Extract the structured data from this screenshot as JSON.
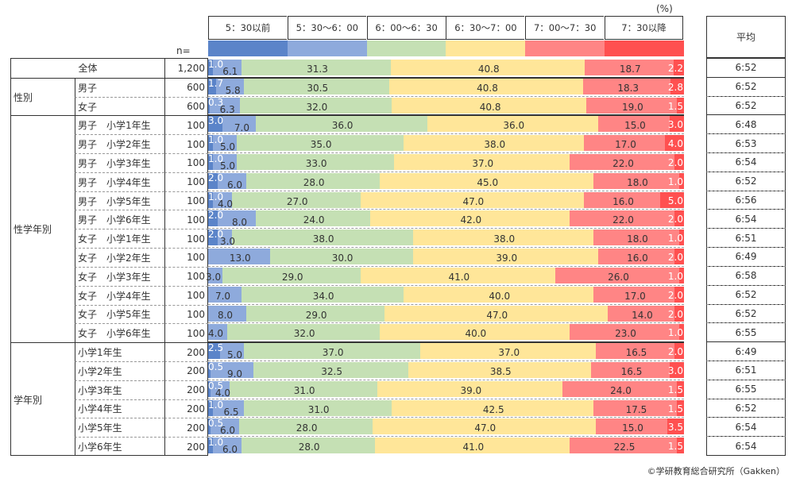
{
  "unit": "(%)",
  "n_label": "n=",
  "avg_header": "平均",
  "credit": "©学研教育総合研究所（Gakken）",
  "colors": [
    "#5b84c9",
    "#8eaadc",
    "#c5e0b4",
    "#ffe699",
    "#ff8585",
    "#ff5050"
  ],
  "chart_data": {
    "type": "bar",
    "stacked": true,
    "orientation": "horizontal",
    "xlim": [
      0,
      100
    ],
    "series_names": [
      "5：30以前",
      "5：30〜6：00",
      "6：00〜6：30",
      "6：30〜7：00",
      "7：00〜7：30",
      "7：30以降"
    ],
    "groups": [
      {
        "label": "",
        "rows": [
          {
            "label": "全体",
            "n": "1,200",
            "values": [
              1.0,
              6.1,
              31.3,
              40.8,
              18.7,
              2.2
            ],
            "avg": "6:52"
          }
        ]
      },
      {
        "label": "性別",
        "rows": [
          {
            "label": "男子",
            "n": "600",
            "values": [
              1.7,
              5.8,
              30.5,
              40.8,
              18.3,
              2.8
            ],
            "avg": "6:52"
          },
          {
            "label": "女子",
            "n": "600",
            "values": [
              0.3,
              6.3,
              32.0,
              40.8,
              19.0,
              1.5
            ],
            "avg": "6:52"
          }
        ]
      },
      {
        "label": "性学年別",
        "rows": [
          {
            "label": "男子　小学1年生",
            "n": "100",
            "values": [
              3.0,
              7.0,
              36.0,
              36.0,
              15.0,
              3.0
            ],
            "avg": "6:48"
          },
          {
            "label": "男子　小学2年生",
            "n": "100",
            "values": [
              1.0,
              5.0,
              35.0,
              38.0,
              17.0,
              4.0
            ],
            "avg": "6:53"
          },
          {
            "label": "男子　小学3年生",
            "n": "100",
            "values": [
              1.0,
              5.0,
              33.0,
              37.0,
              22.0,
              2.0
            ],
            "avg": "6:54"
          },
          {
            "label": "男子　小学4年生",
            "n": "100",
            "values": [
              2.0,
              6.0,
              28.0,
              45.0,
              18.0,
              1.0
            ],
            "avg": "6:52"
          },
          {
            "label": "男子　小学5年生",
            "n": "100",
            "values": [
              1.0,
              4.0,
              27.0,
              47.0,
              16.0,
              5.0
            ],
            "avg": "6:56"
          },
          {
            "label": "男子　小学6年生",
            "n": "100",
            "values": [
              2.0,
              8.0,
              24.0,
              42.0,
              22.0,
              2.0
            ],
            "avg": "6:54"
          },
          {
            "label": "女子　小学1年生",
            "n": "100",
            "values": [
              2.0,
              3.0,
              38.0,
              38.0,
              18.0,
              1.0
            ],
            "avg": "6:51"
          },
          {
            "label": "女子　小学2年生",
            "n": "100",
            "values": [
              null,
              13.0,
              30.0,
              39.0,
              16.0,
              2.0
            ],
            "avg": "6:49"
          },
          {
            "label": "女子　小学3年生",
            "n": "100",
            "values": [
              null,
              3.0,
              29.0,
              41.0,
              26.0,
              1.0
            ],
            "avg": "6:58"
          },
          {
            "label": "女子　小学4年生",
            "n": "100",
            "values": [
              null,
              7.0,
              34.0,
              40.0,
              17.0,
              2.0
            ],
            "avg": "6:52"
          },
          {
            "label": "女子　小学5年生",
            "n": "100",
            "values": [
              null,
              8.0,
              29.0,
              47.0,
              14.0,
              2.0
            ],
            "avg": "6:52"
          },
          {
            "label": "女子　小学6年生",
            "n": "100",
            "values": [
              null,
              4.0,
              32.0,
              40.0,
              23.0,
              1.0
            ],
            "avg": "6:55"
          }
        ]
      },
      {
        "label": "学年別",
        "rows": [
          {
            "label": "小学1年生",
            "n": "200",
            "values": [
              2.5,
              5.0,
              37.0,
              37.0,
              16.5,
              2.0
            ],
            "avg": "6:49"
          },
          {
            "label": "小学2年生",
            "n": "200",
            "values": [
              0.5,
              9.0,
              32.5,
              38.5,
              16.5,
              3.0
            ],
            "avg": "6:51"
          },
          {
            "label": "小学3年生",
            "n": "200",
            "values": [
              0.5,
              4.0,
              31.0,
              39.0,
              24.0,
              1.5
            ],
            "avg": "6:55"
          },
          {
            "label": "小学4年生",
            "n": "200",
            "values": [
              1.0,
              6.5,
              31.0,
              42.5,
              17.5,
              1.5
            ],
            "avg": "6:52"
          },
          {
            "label": "小学5年生",
            "n": "200",
            "values": [
              0.5,
              6.0,
              28.0,
              47.0,
              15.0,
              3.5
            ],
            "avg": "6:54"
          },
          {
            "label": "小学6年生",
            "n": "200",
            "values": [
              1.0,
              6.0,
              28.0,
              41.0,
              22.5,
              1.5
            ],
            "avg": "6:54"
          }
        ]
      }
    ]
  }
}
